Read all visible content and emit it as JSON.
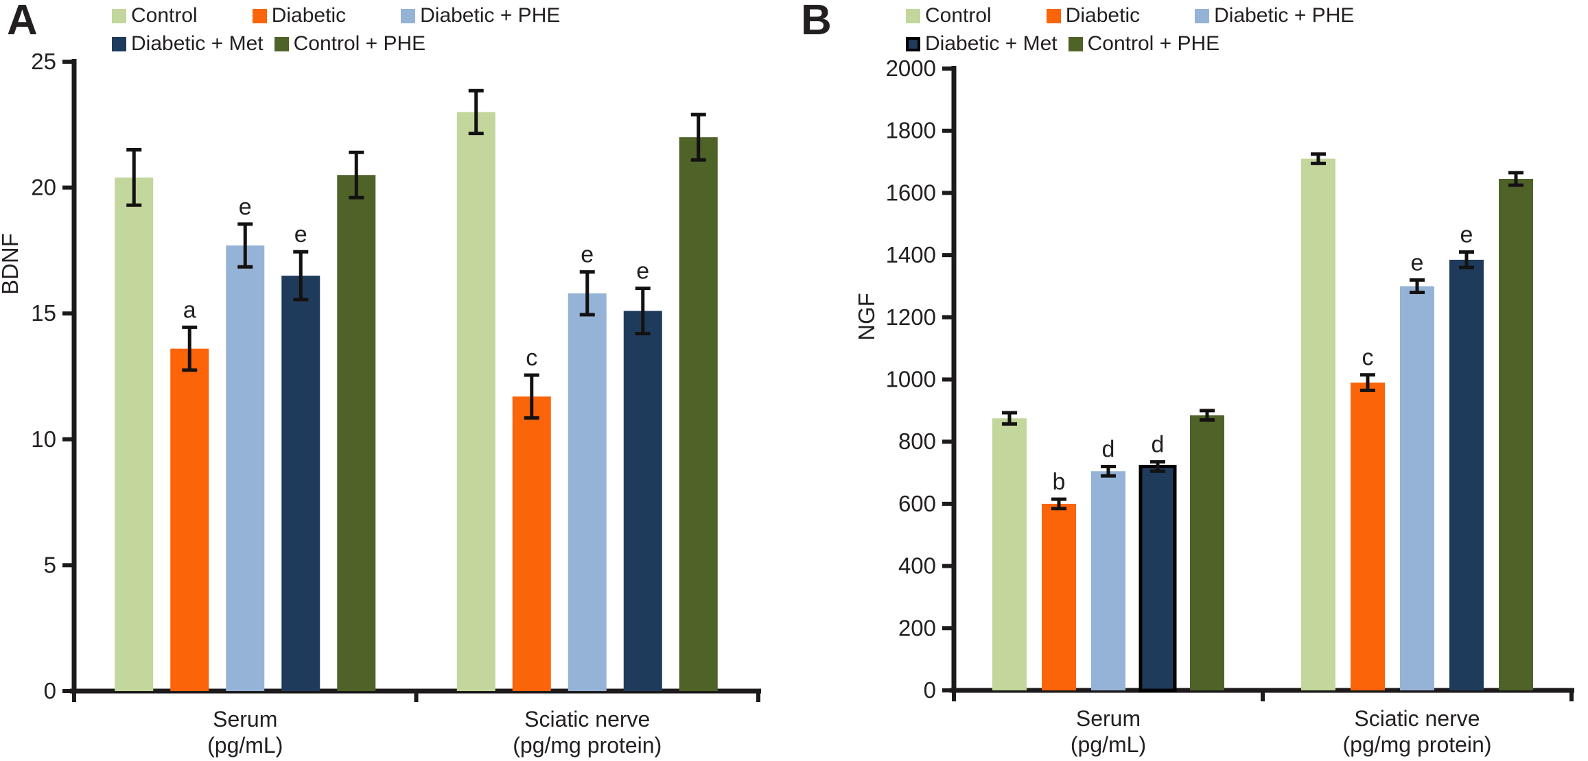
{
  "figure": {
    "background": "#ffffff",
    "text_color": "#231f20",
    "axis_color": "#1c1a1a",
    "error_color": "#141111"
  },
  "chart_data": [
    {
      "type": "bar",
      "panel_label": "A",
      "title": "",
      "xlabel": "",
      "ylabel": "BDNF",
      "ylim": [
        0,
        25
      ],
      "ytick_step": 5,
      "ytick_labels": [
        "0",
        "5",
        "10",
        "15",
        "20",
        "25"
      ],
      "grid": false,
      "legend_position": "top",
      "categories": [
        [
          "Serum",
          "(pg/mL)"
        ],
        [
          "Sciatic nerve",
          "(pg/mg protein)"
        ]
      ],
      "legend_rows": [
        [
          "Control",
          "Diabetic",
          "Diabetic + PHE"
        ],
        [
          "Diabetic + Met",
          "Control + PHE"
        ]
      ],
      "series": [
        {
          "name": "Control",
          "color": "#c3d69b",
          "values": [
            20.4,
            23.0
          ],
          "errors": [
            1.1,
            0.85
          ],
          "labels": [
            "",
            ""
          ]
        },
        {
          "name": "Diabetic",
          "color": "#fb6408",
          "values": [
            13.6,
            11.7
          ],
          "errors": [
            0.85,
            0.85
          ],
          "labels": [
            "a",
            "c"
          ]
        },
        {
          "name": "Diabetic + PHE",
          "color": "#95b3d7",
          "values": [
            17.7,
            15.8
          ],
          "errors": [
            0.85,
            0.85
          ],
          "labels": [
            "e",
            "e"
          ]
        },
        {
          "name": "Diabetic + Met",
          "color": "#1f3b5c",
          "values": [
            16.5,
            15.1
          ],
          "errors": [
            0.95,
            0.9
          ],
          "labels": [
            "e",
            "e"
          ]
        },
        {
          "name": "Control + PHE",
          "color": "#4f6228",
          "values": [
            20.5,
            22.0
          ],
          "errors": [
            0.9,
            0.9
          ],
          "labels": [
            "",
            ""
          ]
        }
      ]
    },
    {
      "type": "bar",
      "panel_label": "B",
      "title": "",
      "xlabel": "",
      "ylabel": "NGF",
      "ylim": [
        0,
        2000
      ],
      "ytick_step": 200,
      "ytick_labels": [
        "0",
        "200",
        "400",
        "600",
        "800",
        "1000",
        "1200",
        "1400",
        "1600",
        "1800",
        "2000"
      ],
      "grid": false,
      "legend_position": "top",
      "categories": [
        [
          "Serum",
          "(pg/mL)"
        ],
        [
          "Sciatic nerve",
          "(pg/mg protein)"
        ]
      ],
      "legend_rows": [
        [
          "Control",
          "Diabetic",
          "Diabetic + PHE"
        ],
        [
          "Diabetic + Met",
          "Control + PHE"
        ]
      ],
      "series": [
        {
          "name": "Control",
          "color": "#c3d69b",
          "values": [
            875,
            1710
          ],
          "errors": [
            18,
            15
          ],
          "labels": [
            "",
            ""
          ]
        },
        {
          "name": "Diabetic",
          "color": "#fb6408",
          "values": [
            600,
            990
          ],
          "errors": [
            15,
            25
          ],
          "labels": [
            "b",
            "c"
          ]
        },
        {
          "name": "Diabetic + PHE",
          "color": "#95b3d7",
          "values": [
            705,
            1300
          ],
          "errors": [
            15,
            20
          ],
          "labels": [
            "d",
            "e"
          ]
        },
        {
          "name": "Diabetic + Met",
          "color": "#1f3b5c",
          "values": [
            720,
            1385
          ],
          "errors": [
            15,
            25
          ],
          "labels": [
            "d",
            "e"
          ],
          "outlined_bars": [
            true,
            false
          ],
          "legend_outlined": true
        },
        {
          "name": "Control + PHE",
          "color": "#4f6228",
          "values": [
            885,
            1645
          ],
          "errors": [
            15,
            20
          ],
          "labels": [
            "",
            ""
          ]
        }
      ]
    }
  ]
}
